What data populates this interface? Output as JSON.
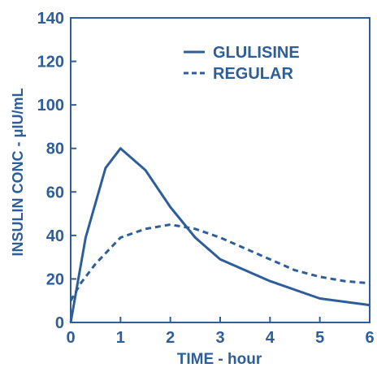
{
  "chart_data": {
    "type": "line",
    "title": "",
    "xlabel": "TIME - hour",
    "ylabel": "INSULIN CONC - μIU/mL",
    "xlim": [
      0,
      6
    ],
    "ylim": [
      0,
      140
    ],
    "x_ticks": [
      "0",
      "1",
      "2",
      "3",
      "4",
      "5",
      "6"
    ],
    "y_ticks": [
      "0",
      "20",
      "40",
      "60",
      "80",
      "100",
      "120",
      "140"
    ],
    "grid": false,
    "legend_position": "top-right",
    "series": [
      {
        "name": "GLULISINE",
        "style": "solid",
        "x": [
          0,
          0.3,
          0.7,
          1.0,
          1.5,
          2.0,
          2.5,
          3.0,
          4.0,
          5.0,
          6.0
        ],
        "y": [
          0,
          39,
          71,
          80,
          70,
          53,
          39,
          29,
          19,
          11,
          8
        ]
      },
      {
        "name": "REGULAR",
        "style": "dashed",
        "x": [
          0,
          0.2,
          0.5,
          1.0,
          1.5,
          2.0,
          2.5,
          3.0,
          3.5,
          4.0,
          4.5,
          5.0,
          5.5,
          6.0
        ],
        "y": [
          10,
          18,
          27,
          39,
          43,
          45,
          43,
          39,
          34,
          29,
          24,
          21,
          19,
          18
        ]
      }
    ],
    "colors": {
      "line": "#2e5e99",
      "text": "#2e5e99",
      "axis": "#2e5e99"
    }
  }
}
